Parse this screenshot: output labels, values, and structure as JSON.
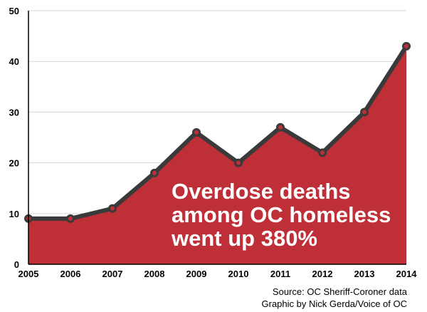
{
  "chart_data": {
    "type": "area",
    "x": [
      "2005",
      "2006",
      "2007",
      "2008",
      "2009",
      "2010",
      "2011",
      "2012",
      "2013",
      "2014"
    ],
    "values": [
      9,
      9,
      11,
      18,
      26,
      20,
      27,
      22,
      30,
      43
    ],
    "ylim": [
      0,
      50
    ],
    "yticks": [
      "0",
      "10",
      "20",
      "30",
      "40",
      "50"
    ],
    "grid": true,
    "legend": "none",
    "annotation": [
      "Overdose deaths",
      "among OC homeless",
      "went up 380%"
    ],
    "source": "Source: OC Sheriff-Coroner data",
    "credit": "Graphic by Nick Gerda/Voice of OC",
    "colors": {
      "fill": "#bf2f38",
      "line": "#3a3a3a",
      "grid": "#d6d6d6",
      "axis": "#000000"
    }
  }
}
